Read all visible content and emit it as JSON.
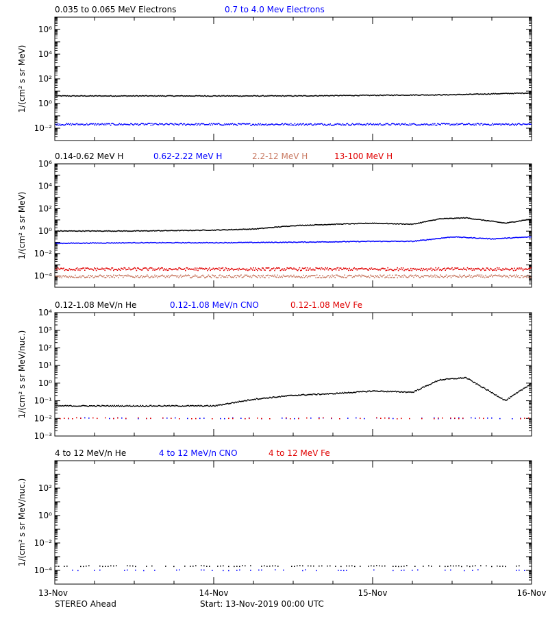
{
  "footer": {
    "instrument": "STEREO Ahead",
    "start": "Start: 13-Nov-2019 00:00 UTC"
  },
  "x_axis": {
    "type": "date",
    "range": [
      "2019-11-13",
      "2019-11-16"
    ],
    "tick_labels": [
      "13-Nov",
      "14-Nov",
      "15-Nov",
      "16-Nov"
    ]
  },
  "chart_data": [
    {
      "type": "scatter",
      "ylabel": "1/(cm² s sr MeV)",
      "yscale": "log",
      "ylim": [
        0.001,
        10000000
      ],
      "y_ticks": [
        {
          "value": 0.01,
          "label": "10⁻²"
        },
        {
          "value": 1,
          "label": "10⁰"
        },
        {
          "value": 100,
          "label": "10²"
        },
        {
          "value": 10000,
          "label": "10⁴"
        },
        {
          "value": 1000000,
          "label": "10⁶"
        }
      ],
      "series": [
        {
          "name": "0.035 to 0.065 MeV Electrons",
          "color": "#000000",
          "x": [
            "2019-11-13",
            "2019-11-13T12:00",
            "2019-11-14",
            "2019-11-14T12:00",
            "2019-11-15",
            "2019-11-15T12:00",
            "2019-11-16"
          ],
          "values": [
            4,
            4,
            4,
            4,
            4.5,
            5,
            7
          ]
        },
        {
          "name": "0.7 to 4.0 Mev Electrons",
          "color": "#0000ff",
          "x": [
            "2019-11-13",
            "2019-11-13T12:00",
            "2019-11-14",
            "2019-11-14T12:00",
            "2019-11-15",
            "2019-11-15T12:00",
            "2019-11-16"
          ],
          "values": [
            0.02,
            0.02,
            0.02,
            0.02,
            0.02,
            0.02,
            0.02
          ]
        }
      ]
    },
    {
      "type": "scatter",
      "ylabel": "1/(cm² s sr MeV)",
      "yscale": "log",
      "ylim": [
        1e-05,
        1000000
      ],
      "y_ticks": [
        {
          "value": 0.0001,
          "label": "10⁻⁴"
        },
        {
          "value": 0.01,
          "label": "10⁻²"
        },
        {
          "value": 1,
          "label": "10⁰"
        },
        {
          "value": 100,
          "label": "10²"
        },
        {
          "value": 10000,
          "label": "10⁴"
        },
        {
          "value": 1000000,
          "label": "10⁶"
        }
      ],
      "series": [
        {
          "name": "0.14-0.62 MeV H",
          "color": "#000000",
          "x": [
            "2019-11-13",
            "2019-11-13T12:00",
            "2019-11-14",
            "2019-11-14T06:00",
            "2019-11-14T12:00",
            "2019-11-14T18:00",
            "2019-11-15",
            "2019-11-15T06:00",
            "2019-11-15T10:00",
            "2019-11-15T14:00",
            "2019-11-15T20:00",
            "2019-11-16"
          ],
          "values": [
            1,
            1,
            1.2,
            1.5,
            3,
            4,
            5,
            4,
            12,
            15,
            5,
            12
          ]
        },
        {
          "name": "0.62-2.22 MeV H",
          "color": "#0000ff",
          "x": [
            "2019-11-13",
            "2019-11-13T12:00",
            "2019-11-14",
            "2019-11-14T12:00",
            "2019-11-15",
            "2019-11-15T06:00",
            "2019-11-15T12:00",
            "2019-11-15T18:00",
            "2019-11-16"
          ],
          "values": [
            0.08,
            0.09,
            0.09,
            0.1,
            0.12,
            0.12,
            0.3,
            0.2,
            0.3
          ]
        },
        {
          "name": "2.2-12 MeV H",
          "color": "#c87860",
          "x": [
            "2019-11-13",
            "2019-11-14",
            "2019-11-15",
            "2019-11-16"
          ],
          "values": [
            9e-05,
            9e-05,
            9e-05,
            9e-05
          ]
        },
        {
          "name": "13-100 MeV H",
          "color": "#e00000",
          "x": [
            "2019-11-13",
            "2019-11-14",
            "2019-11-15",
            "2019-11-16"
          ],
          "values": [
            0.0004,
            0.0004,
            0.0004,
            0.0004
          ]
        }
      ]
    },
    {
      "type": "scatter",
      "ylabel": "1/(cm² s sr MeV/nuc.)",
      "yscale": "log",
      "ylim": [
        0.001,
        10000
      ],
      "y_ticks": [
        {
          "value": 0.001,
          "label": "10⁻³"
        },
        {
          "value": 0.01,
          "label": "10⁻²"
        },
        {
          "value": 0.1,
          "label": "10⁻¹"
        },
        {
          "value": 1,
          "label": "10⁰"
        },
        {
          "value": 10,
          "label": "10¹"
        },
        {
          "value": 100,
          "label": "10²"
        },
        {
          "value": 1000,
          "label": "10³"
        },
        {
          "value": 10000,
          "label": "10⁴"
        }
      ],
      "series": [
        {
          "name": "0.12-1.08 MeV/n He",
          "color": "#000000",
          "x": [
            "2019-11-13",
            "2019-11-13T12:00",
            "2019-11-14",
            "2019-11-14T06:00",
            "2019-11-14T12:00",
            "2019-11-14T18:00",
            "2019-11-15",
            "2019-11-15T06:00",
            "2019-11-15T10:00",
            "2019-11-15T14:00",
            "2019-11-15T20:00",
            "2019-11-16"
          ],
          "values": [
            0.05,
            0.05,
            0.05,
            0.12,
            0.2,
            0.25,
            0.35,
            0.3,
            1.5,
            2,
            0.1,
            1
          ]
        },
        {
          "name": "0.12-1.08 MeV/n CNO",
          "color": "#0000ff",
          "x": [
            "2019-11-13",
            "2019-11-14",
            "2019-11-15",
            "2019-11-16"
          ],
          "values": [
            0.01,
            0.01,
            0.01,
            0.01
          ]
        },
        {
          "name": "0.12-1.08 MeV Fe",
          "color": "#e00000",
          "x": [
            "2019-11-13",
            "2019-11-14",
            "2019-11-15",
            "2019-11-16"
          ],
          "values": [
            0.01,
            0.01,
            0.01,
            0.01
          ]
        }
      ]
    },
    {
      "type": "scatter",
      "ylabel": "1/(cm² s sr MeV/nuc.)",
      "yscale": "log",
      "ylim": [
        1e-05,
        10000
      ],
      "y_ticks": [
        {
          "value": 0.0001,
          "label": "10⁻⁴"
        },
        {
          "value": 0.01,
          "label": "10⁻²"
        },
        {
          "value": 1,
          "label": "10⁰"
        },
        {
          "value": 100,
          "label": "10²"
        }
      ],
      "series": [
        {
          "name": "4 to 12 MeV/n He",
          "color": "#000000",
          "x": [
            "2019-11-13",
            "2019-11-14",
            "2019-11-15",
            "2019-11-16"
          ],
          "values": [
            0.0002,
            0.0002,
            0.0002,
            0.0002
          ]
        },
        {
          "name": "4 to 12 MeV/n CNO",
          "color": "#0000ff",
          "x": [
            "2019-11-13",
            "2019-11-14",
            "2019-11-15",
            "2019-11-16"
          ],
          "values": [
            0.0001,
            0.0001,
            0.0001,
            0.0001
          ]
        },
        {
          "name": "4 to 12 MeV Fe",
          "color": "#e00000",
          "x": [],
          "values": []
        }
      ]
    }
  ]
}
